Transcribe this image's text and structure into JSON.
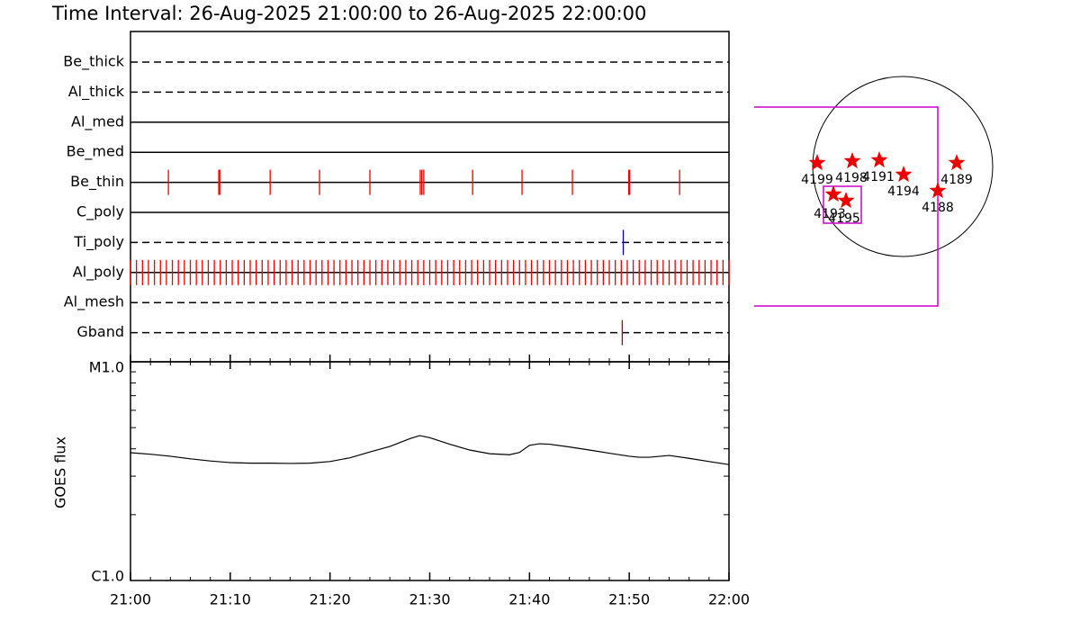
{
  "title": "Time Interval: 26-Aug-2025 21:00:00 to 26-Aug-2025 22:00:00",
  "chart_data": [
    {
      "type": "timeline",
      "xlim": [
        0,
        60
      ],
      "channels": [
        {
          "name": "Be_thick",
          "line": "dashed",
          "color": "#cc0000",
          "events": []
        },
        {
          "name": "Al_thick",
          "line": "dashed",
          "color": "#cc0000",
          "events": []
        },
        {
          "name": "Al_med",
          "line": "solid",
          "color": "#cc0000",
          "events": []
        },
        {
          "name": "Be_med",
          "line": "solid",
          "color": "#cc0000",
          "events": []
        },
        {
          "name": "Be_thin",
          "line": "solid",
          "color": "#ee0000",
          "events": [
            3.8,
            8.85,
            8.95,
            14.0,
            18.95,
            24.0,
            29.05,
            29.2,
            29.4,
            34.3,
            39.25,
            44.3,
            49.95,
            50.05,
            55.05
          ]
        },
        {
          "name": "C_poly",
          "line": "solid",
          "color": "#cc0000",
          "events": []
        },
        {
          "name": "Ti_poly",
          "line": "dashed",
          "color": "#0000cc",
          "events": [
            49.4
          ]
        },
        {
          "name": "Al_poly",
          "line": "solid",
          "color": "#ee0000",
          "events": [
            0,
            0.6,
            1.2,
            1.8,
            2.4,
            3,
            3.6,
            4.2,
            4.8,
            5.4,
            6,
            6.6,
            7.2,
            7.8,
            8.4,
            9,
            9.6,
            10.2,
            10.8,
            11.4,
            12,
            12.6,
            13.2,
            13.8,
            14.4,
            15,
            15.6,
            16.2,
            16.8,
            17.4,
            18,
            18.6,
            19.2,
            19.8,
            20.4,
            21,
            21.6,
            22.2,
            22.8,
            23.4,
            24,
            24.6,
            25.2,
            25.8,
            26.4,
            27,
            27.6,
            28.2,
            28.8,
            29.4,
            30,
            30.6,
            31.2,
            31.8,
            32.4,
            33,
            33.6,
            34.2,
            34.8,
            35.4,
            36,
            36.6,
            37.2,
            37.8,
            38.4,
            39,
            39.6,
            40.2,
            40.8,
            41.4,
            42,
            42.6,
            43.2,
            43.8,
            44.4,
            45,
            45.6,
            46.2,
            46.8,
            47.4,
            48,
            48.6,
            49.2,
            49.8,
            50.4,
            51,
            51.6,
            52.2,
            52.8,
            53.4,
            54,
            54.6,
            55.2,
            55.8,
            56.4,
            57,
            57.6,
            58.2,
            58.8,
            59.4,
            60
          ]
        },
        {
          "name": "Al_mesh",
          "line": "dashed",
          "color": "#cc0000",
          "events": []
        },
        {
          "name": "Gband",
          "line": "dashed",
          "color": "#aa0000",
          "events": [
            49.3
          ]
        }
      ]
    },
    {
      "type": "line",
      "ylabel": "GOES flux",
      "color": "#000000",
      "log": true,
      "xlim": [
        0,
        60
      ],
      "xticks": [
        {
          "value": 0,
          "label": "21:00"
        },
        {
          "value": 10,
          "label": "21:10"
        },
        {
          "value": 20,
          "label": "21:20"
        },
        {
          "value": 30,
          "label": "21:30"
        },
        {
          "value": 40,
          "label": "21:40"
        },
        {
          "value": 50,
          "label": "21:50"
        },
        {
          "value": 60,
          "label": "22:00"
        }
      ],
      "xminor": [
        2,
        4,
        6,
        8,
        12,
        14,
        16,
        18,
        22,
        24,
        26,
        28,
        32,
        34,
        36,
        38,
        42,
        44,
        46,
        48,
        52,
        54,
        56,
        58
      ],
      "ylim": [
        1e-06,
        1e-05
      ],
      "yticks": [
        {
          "value": 1e-06,
          "label": "C1.0"
        },
        {
          "value": 1e-05,
          "label": "M1.0"
        }
      ],
      "yminor": [
        2e-06,
        3e-06,
        4e-06,
        5e-06,
        6e-06,
        7e-06,
        8e-06,
        9e-06
      ],
      "x": [
        0,
        2,
        4,
        6,
        8,
        10,
        12,
        14,
        16,
        18,
        20,
        22,
        24,
        26,
        28,
        29,
        30,
        32,
        34,
        36,
        38,
        39,
        40,
        41,
        42,
        44,
        46,
        48,
        50,
        51,
        52,
        54,
        56,
        58,
        60
      ],
      "values": [
        3.84e-06,
        3.78e-06,
        3.7e-06,
        3.6e-06,
        3.52e-06,
        3.46e-06,
        3.44e-06,
        3.44e-06,
        3.43e-06,
        3.44e-06,
        3.5e-06,
        3.64e-06,
        3.87e-06,
        4.1e-06,
        4.45e-06,
        4.6e-06,
        4.5e-06,
        4.2e-06,
        3.95e-06,
        3.8e-06,
        3.76e-06,
        3.85e-06,
        4.15e-06,
        4.22e-06,
        4.2e-06,
        4.08e-06,
        3.95e-06,
        3.82e-06,
        3.7e-06,
        3.66e-06,
        3.66e-06,
        3.73e-06,
        3.62e-06,
        3.5e-06,
        3.39e-06
      ]
    },
    {
      "type": "map",
      "regions": [
        "4199",
        "4198",
        "4191",
        "4194",
        "4189",
        "4188",
        "4193",
        "4195"
      ]
    }
  ]
}
